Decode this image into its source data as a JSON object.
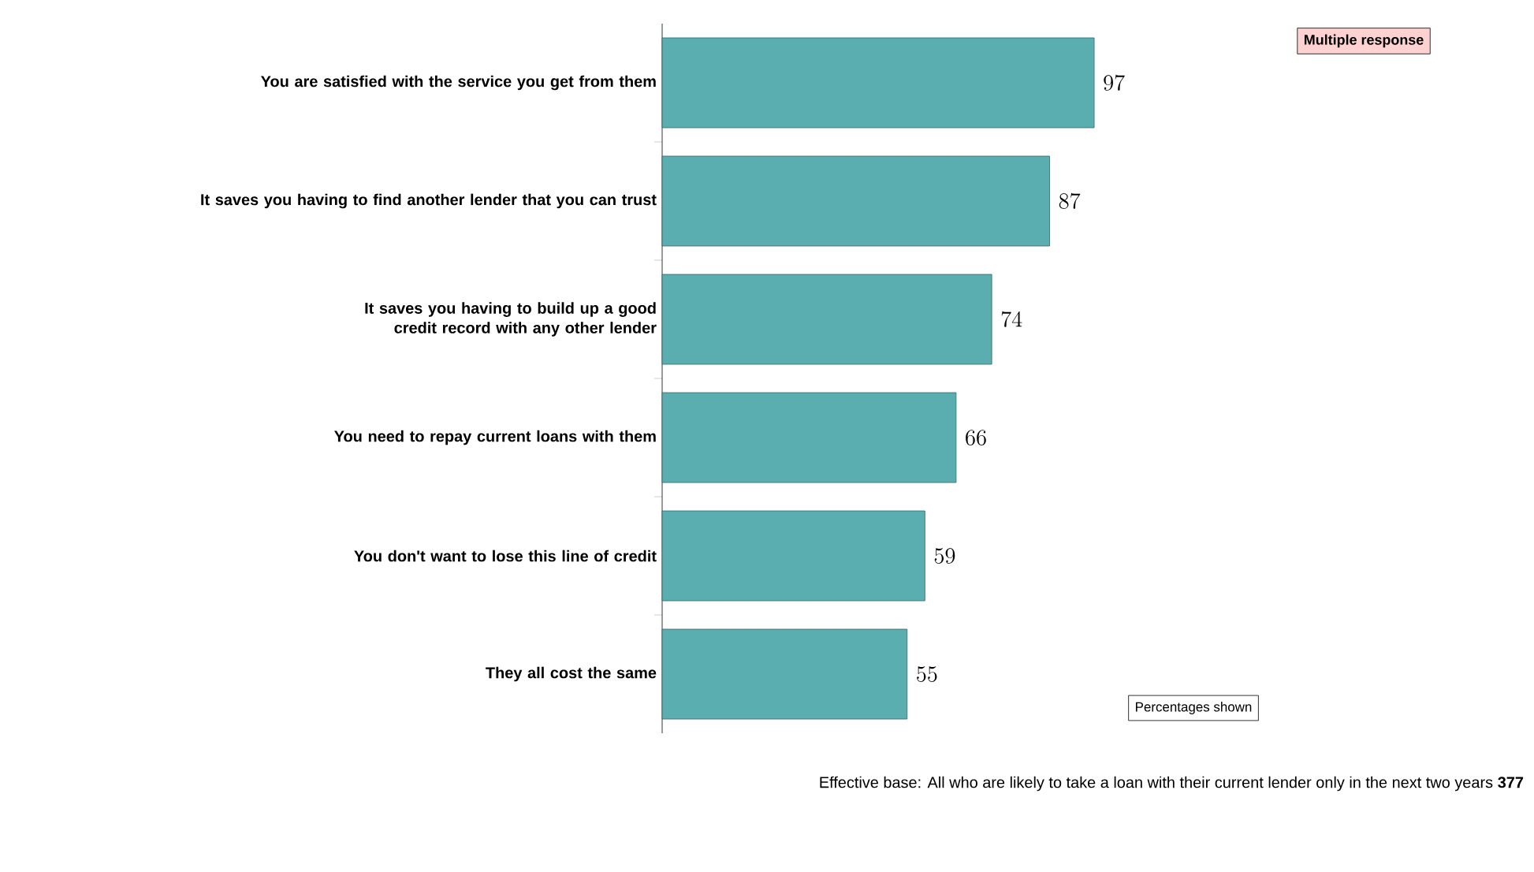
{
  "chart_data": {
    "type": "bar",
    "orientation": "horizontal",
    "data_labels": true,
    "color": "#5aaeb0",
    "categories": [
      "You are satisfied with the service you get from them",
      "It saves you having to find another lender that you can trust",
      "It saves you having to build up a good credit record with any other lender",
      "You need to repay current loans with them",
      "You don't want to lose this line of credit",
      "They all cost the same"
    ],
    "values": [
      97,
      87,
      74,
      66,
      59,
      55
    ],
    "annotations": [
      "Multiple response",
      "Percentages shown",
      "Effective base: All who are likely to take a loan with their current lender only in the next two years **377**"
    ]
  }
}
